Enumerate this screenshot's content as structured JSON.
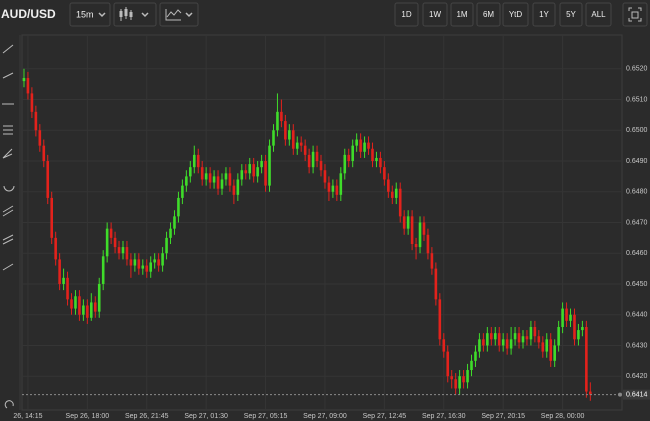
{
  "toolbar": {
    "symbol": "AUD/USD",
    "interval": "15m",
    "ranges": [
      "1D",
      "1W",
      "1M",
      "6M",
      "YtD",
      "1Y",
      "5Y",
      "ALL"
    ]
  },
  "chart_data": {
    "type": "candlestick",
    "up_color": "#3fdc2a",
    "down_color": "#e3221c",
    "grid": true,
    "xlim": [
      -0.5,
      151
    ],
    "ylim": [
      0.6409,
      0.6531
    ],
    "xticks": [
      {
        "value": 1,
        "label": "26, 14:15"
      },
      {
        "value": 16,
        "label": "Sep 26, 18:00"
      },
      {
        "value": 31,
        "label": "Sep 26, 21:45"
      },
      {
        "value": 46,
        "label": "Sep 27, 01:30"
      },
      {
        "value": 61,
        "label": "Sep 27, 05:15"
      },
      {
        "value": 76,
        "label": "Sep 27, 09:00"
      },
      {
        "value": 91,
        "label": "Sep 27, 12:45"
      },
      {
        "value": 106,
        "label": "Sep 27, 16:30"
      },
      {
        "value": 121,
        "label": "Sep 27, 20:15"
      },
      {
        "value": 136,
        "label": "Sep 28, 00:00"
      }
    ],
    "yticks": [
      {
        "value": 0.642,
        "label": "0.6420"
      },
      {
        "value": 0.643,
        "label": "0.6430"
      },
      {
        "value": 0.644,
        "label": "0.6440"
      },
      {
        "value": 0.645,
        "label": "0.6450"
      },
      {
        "value": 0.646,
        "label": "0.6460"
      },
      {
        "value": 0.647,
        "label": "0.6470"
      },
      {
        "value": 0.648,
        "label": "0.6480"
      },
      {
        "value": 0.649,
        "label": "0.6490"
      },
      {
        "value": 0.65,
        "label": "0.6500"
      },
      {
        "value": 0.651,
        "label": "0.6510"
      },
      {
        "value": 0.652,
        "label": "0.6520"
      }
    ],
    "last_price": {
      "value": 0.6414,
      "label": "0.6414"
    },
    "ohlc": [
      [
        0.6516,
        0.652,
        0.6514,
        0.6517
      ],
      [
        0.6517,
        0.6519,
        0.651,
        0.6512
      ],
      [
        0.6512,
        0.6514,
        0.6504,
        0.6506
      ],
      [
        0.6506,
        0.6508,
        0.6498,
        0.65
      ],
      [
        0.65,
        0.6502,
        0.6493,
        0.6495
      ],
      [
        0.6495,
        0.6497,
        0.6488,
        0.649
      ],
      [
        0.649,
        0.6492,
        0.6476,
        0.6478
      ],
      [
        0.6478,
        0.648,
        0.6463,
        0.6465
      ],
      [
        0.6465,
        0.6467,
        0.6456,
        0.6458
      ],
      [
        0.6458,
        0.646,
        0.6448,
        0.645
      ],
      [
        0.645,
        0.6455,
        0.6448,
        0.6452
      ],
      [
        0.6452,
        0.6454,
        0.6443,
        0.6445
      ],
      [
        0.6445,
        0.6447,
        0.644,
        0.6442
      ],
      [
        0.6442,
        0.6448,
        0.644,
        0.6446
      ],
      [
        0.6446,
        0.6448,
        0.6438,
        0.644
      ],
      [
        0.644,
        0.6445,
        0.6438,
        0.6443
      ],
      [
        0.6443,
        0.6445,
        0.6437,
        0.6439
      ],
      [
        0.6439,
        0.6447,
        0.6438,
        0.6444
      ],
      [
        0.6444,
        0.6446,
        0.6439,
        0.6441
      ],
      [
        0.6441,
        0.6452,
        0.6439,
        0.645
      ],
      [
        0.645,
        0.6461,
        0.6448,
        0.6459
      ],
      [
        0.6459,
        0.647,
        0.6457,
        0.6468
      ],
      [
        0.6468,
        0.647,
        0.6463,
        0.6465
      ],
      [
        0.6465,
        0.6467,
        0.646,
        0.6462
      ],
      [
        0.6462,
        0.6464,
        0.6458,
        0.646
      ],
      [
        0.646,
        0.6464,
        0.6458,
        0.6462
      ],
      [
        0.6462,
        0.6464,
        0.6456,
        0.6458
      ],
      [
        0.6458,
        0.646,
        0.6452,
        0.6456
      ],
      [
        0.6456,
        0.646,
        0.6454,
        0.6458
      ],
      [
        0.6458,
        0.646,
        0.6453,
        0.6455
      ],
      [
        0.6455,
        0.6458,
        0.6453,
        0.6456
      ],
      [
        0.6456,
        0.6458,
        0.6452,
        0.6454
      ],
      [
        0.6454,
        0.6459,
        0.6452,
        0.6457
      ],
      [
        0.6457,
        0.646,
        0.6455,
        0.6458
      ],
      [
        0.6458,
        0.646,
        0.6454,
        0.6456
      ],
      [
        0.6456,
        0.6462,
        0.6454,
        0.646
      ],
      [
        0.646,
        0.6467,
        0.6458,
        0.6465
      ],
      [
        0.6465,
        0.647,
        0.6463,
        0.6468
      ],
      [
        0.6468,
        0.6474,
        0.6466,
        0.6472
      ],
      [
        0.6472,
        0.648,
        0.647,
        0.6478
      ],
      [
        0.6478,
        0.6484,
        0.6476,
        0.6482
      ],
      [
        0.6482,
        0.6487,
        0.648,
        0.6485
      ],
      [
        0.6485,
        0.649,
        0.6483,
        0.6488
      ],
      [
        0.6488,
        0.6495,
        0.6486,
        0.6492
      ],
      [
        0.6492,
        0.6494,
        0.6486,
        0.6488
      ],
      [
        0.6488,
        0.649,
        0.6482,
        0.6484
      ],
      [
        0.6484,
        0.6488,
        0.6482,
        0.6486
      ],
      [
        0.6486,
        0.6488,
        0.6481,
        0.6483
      ],
      [
        0.6483,
        0.6487,
        0.6481,
        0.6485
      ],
      [
        0.6485,
        0.6487,
        0.6479,
        0.6481
      ],
      [
        0.6481,
        0.6486,
        0.6479,
        0.6484
      ],
      [
        0.6484,
        0.6488,
        0.6482,
        0.6486
      ],
      [
        0.6486,
        0.6488,
        0.648,
        0.6482
      ],
      [
        0.6482,
        0.6484,
        0.6476,
        0.6479
      ],
      [
        0.6479,
        0.6486,
        0.6477,
        0.6484
      ],
      [
        0.6484,
        0.6489,
        0.6482,
        0.6487
      ],
      [
        0.6487,
        0.6489,
        0.6484,
        0.6486
      ],
      [
        0.6486,
        0.6491,
        0.6484,
        0.6489
      ],
      [
        0.6489,
        0.6491,
        0.6483,
        0.6485
      ],
      [
        0.6485,
        0.649,
        0.6483,
        0.6488
      ],
      [
        0.6488,
        0.6492,
        0.6486,
        0.649
      ],
      [
        0.649,
        0.6492,
        0.648,
        0.6482
      ],
      [
        0.6482,
        0.6497,
        0.648,
        0.6495
      ],
      [
        0.6495,
        0.6502,
        0.6493,
        0.65
      ],
      [
        0.65,
        0.6512,
        0.6498,
        0.6506
      ],
      [
        0.6506,
        0.651,
        0.6501,
        0.6503
      ],
      [
        0.6503,
        0.6505,
        0.6495,
        0.6497
      ],
      [
        0.6497,
        0.6502,
        0.6495,
        0.65
      ],
      [
        0.65,
        0.6502,
        0.6492,
        0.6494
      ],
      [
        0.6494,
        0.6498,
        0.6492,
        0.6496
      ],
      [
        0.6496,
        0.6498,
        0.6493,
        0.6495
      ],
      [
        0.6495,
        0.6497,
        0.649,
        0.6492
      ],
      [
        0.6492,
        0.6494,
        0.6486,
        0.6488
      ],
      [
        0.6488,
        0.6495,
        0.6486,
        0.6493
      ],
      [
        0.6493,
        0.6495,
        0.6488,
        0.649
      ],
      [
        0.649,
        0.6492,
        0.6485,
        0.6487
      ],
      [
        0.6487,
        0.6489,
        0.6481,
        0.6483
      ],
      [
        0.6483,
        0.6485,
        0.6477,
        0.648
      ],
      [
        0.648,
        0.6484,
        0.6478,
        0.6482
      ],
      [
        0.6482,
        0.6484,
        0.6477,
        0.6479
      ],
      [
        0.6479,
        0.6488,
        0.6477,
        0.6486
      ],
      [
        0.6486,
        0.6494,
        0.6484,
        0.6492
      ],
      [
        0.6492,
        0.6494,
        0.6488,
        0.649
      ],
      [
        0.649,
        0.6497,
        0.6488,
        0.6495
      ],
      [
        0.6495,
        0.6499,
        0.6493,
        0.6497
      ],
      [
        0.6497,
        0.6499,
        0.6491,
        0.6493
      ],
      [
        0.6493,
        0.6498,
        0.6491,
        0.6496
      ],
      [
        0.6496,
        0.6498,
        0.6492,
        0.6494
      ],
      [
        0.6494,
        0.6496,
        0.6488,
        0.649
      ],
      [
        0.649,
        0.6493,
        0.6488,
        0.6491
      ],
      [
        0.6491,
        0.6493,
        0.6486,
        0.6488
      ],
      [
        0.6488,
        0.649,
        0.6482,
        0.6484
      ],
      [
        0.6484,
        0.6486,
        0.6478,
        0.648
      ],
      [
        0.648,
        0.6482,
        0.6476,
        0.6478
      ],
      [
        0.6478,
        0.6483,
        0.6476,
        0.6481
      ],
      [
        0.6481,
        0.6483,
        0.647,
        0.6472
      ],
      [
        0.6472,
        0.6474,
        0.6466,
        0.6468
      ],
      [
        0.6468,
        0.6474,
        0.6466,
        0.6472
      ],
      [
        0.6472,
        0.6474,
        0.6461,
        0.6463
      ],
      [
        0.6463,
        0.6465,
        0.6458,
        0.6462
      ],
      [
        0.6462,
        0.6472,
        0.646,
        0.647
      ],
      [
        0.647,
        0.6472,
        0.6464,
        0.6466
      ],
      [
        0.6466,
        0.6468,
        0.6458,
        0.646
      ],
      [
        0.646,
        0.6462,
        0.6453,
        0.6455
      ],
      [
        0.6455,
        0.6457,
        0.6443,
        0.6445
      ],
      [
        0.6445,
        0.6447,
        0.643,
        0.6432
      ],
      [
        0.6432,
        0.6434,
        0.6426,
        0.6428
      ],
      [
        0.6428,
        0.643,
        0.6418,
        0.642
      ],
      [
        0.642,
        0.6422,
        0.6416,
        0.6419
      ],
      [
        0.6419,
        0.6421,
        0.6414,
        0.6416
      ],
      [
        0.6416,
        0.6422,
        0.6414,
        0.642
      ],
      [
        0.642,
        0.6422,
        0.6416,
        0.6418
      ],
      [
        0.6418,
        0.6424,
        0.6416,
        0.6422
      ],
      [
        0.6422,
        0.6427,
        0.642,
        0.6425
      ],
      [
        0.6425,
        0.643,
        0.6423,
        0.6428
      ],
      [
        0.6428,
        0.6434,
        0.6426,
        0.6432
      ],
      [
        0.6432,
        0.6434,
        0.6428,
        0.643
      ],
      [
        0.643,
        0.6436,
        0.6428,
        0.6434
      ],
      [
        0.6434,
        0.6436,
        0.643,
        0.6432
      ],
      [
        0.6432,
        0.6436,
        0.643,
        0.6434
      ],
      [
        0.6434,
        0.6436,
        0.6428,
        0.643
      ],
      [
        0.643,
        0.6434,
        0.6428,
        0.6432
      ],
      [
        0.6432,
        0.6434,
        0.6427,
        0.6429
      ],
      [
        0.6429,
        0.6436,
        0.6427,
        0.6432
      ],
      [
        0.6432,
        0.6436,
        0.643,
        0.6434
      ],
      [
        0.6434,
        0.6436,
        0.6429,
        0.6431
      ],
      [
        0.6431,
        0.6435,
        0.6429,
        0.6433
      ],
      [
        0.6433,
        0.6435,
        0.643,
        0.6432
      ],
      [
        0.6432,
        0.6438,
        0.643,
        0.6436
      ],
      [
        0.6436,
        0.6438,
        0.6431,
        0.6433
      ],
      [
        0.6433,
        0.6435,
        0.6429,
        0.6431
      ],
      [
        0.6431,
        0.6433,
        0.6426,
        0.6428
      ],
      [
        0.6428,
        0.6434,
        0.6426,
        0.6432
      ],
      [
        0.6432,
        0.6434,
        0.6423,
        0.6425
      ],
      [
        0.6425,
        0.6432,
        0.6423,
        0.643
      ],
      [
        0.643,
        0.6438,
        0.6428,
        0.6436
      ],
      [
        0.6436,
        0.6444,
        0.6434,
        0.6442
      ],
      [
        0.6442,
        0.6444,
        0.6436,
        0.6438
      ],
      [
        0.6438,
        0.6442,
        0.6436,
        0.644
      ],
      [
        0.644,
        0.6442,
        0.643,
        0.6432
      ],
      [
        0.6432,
        0.6437,
        0.643,
        0.6435
      ],
      [
        0.6435,
        0.6438,
        0.6433,
        0.6436
      ],
      [
        0.6436,
        0.6438,
        0.6413,
        0.6415
      ],
      [
        0.6415,
        0.6418,
        0.6412,
        0.6414
      ]
    ]
  }
}
